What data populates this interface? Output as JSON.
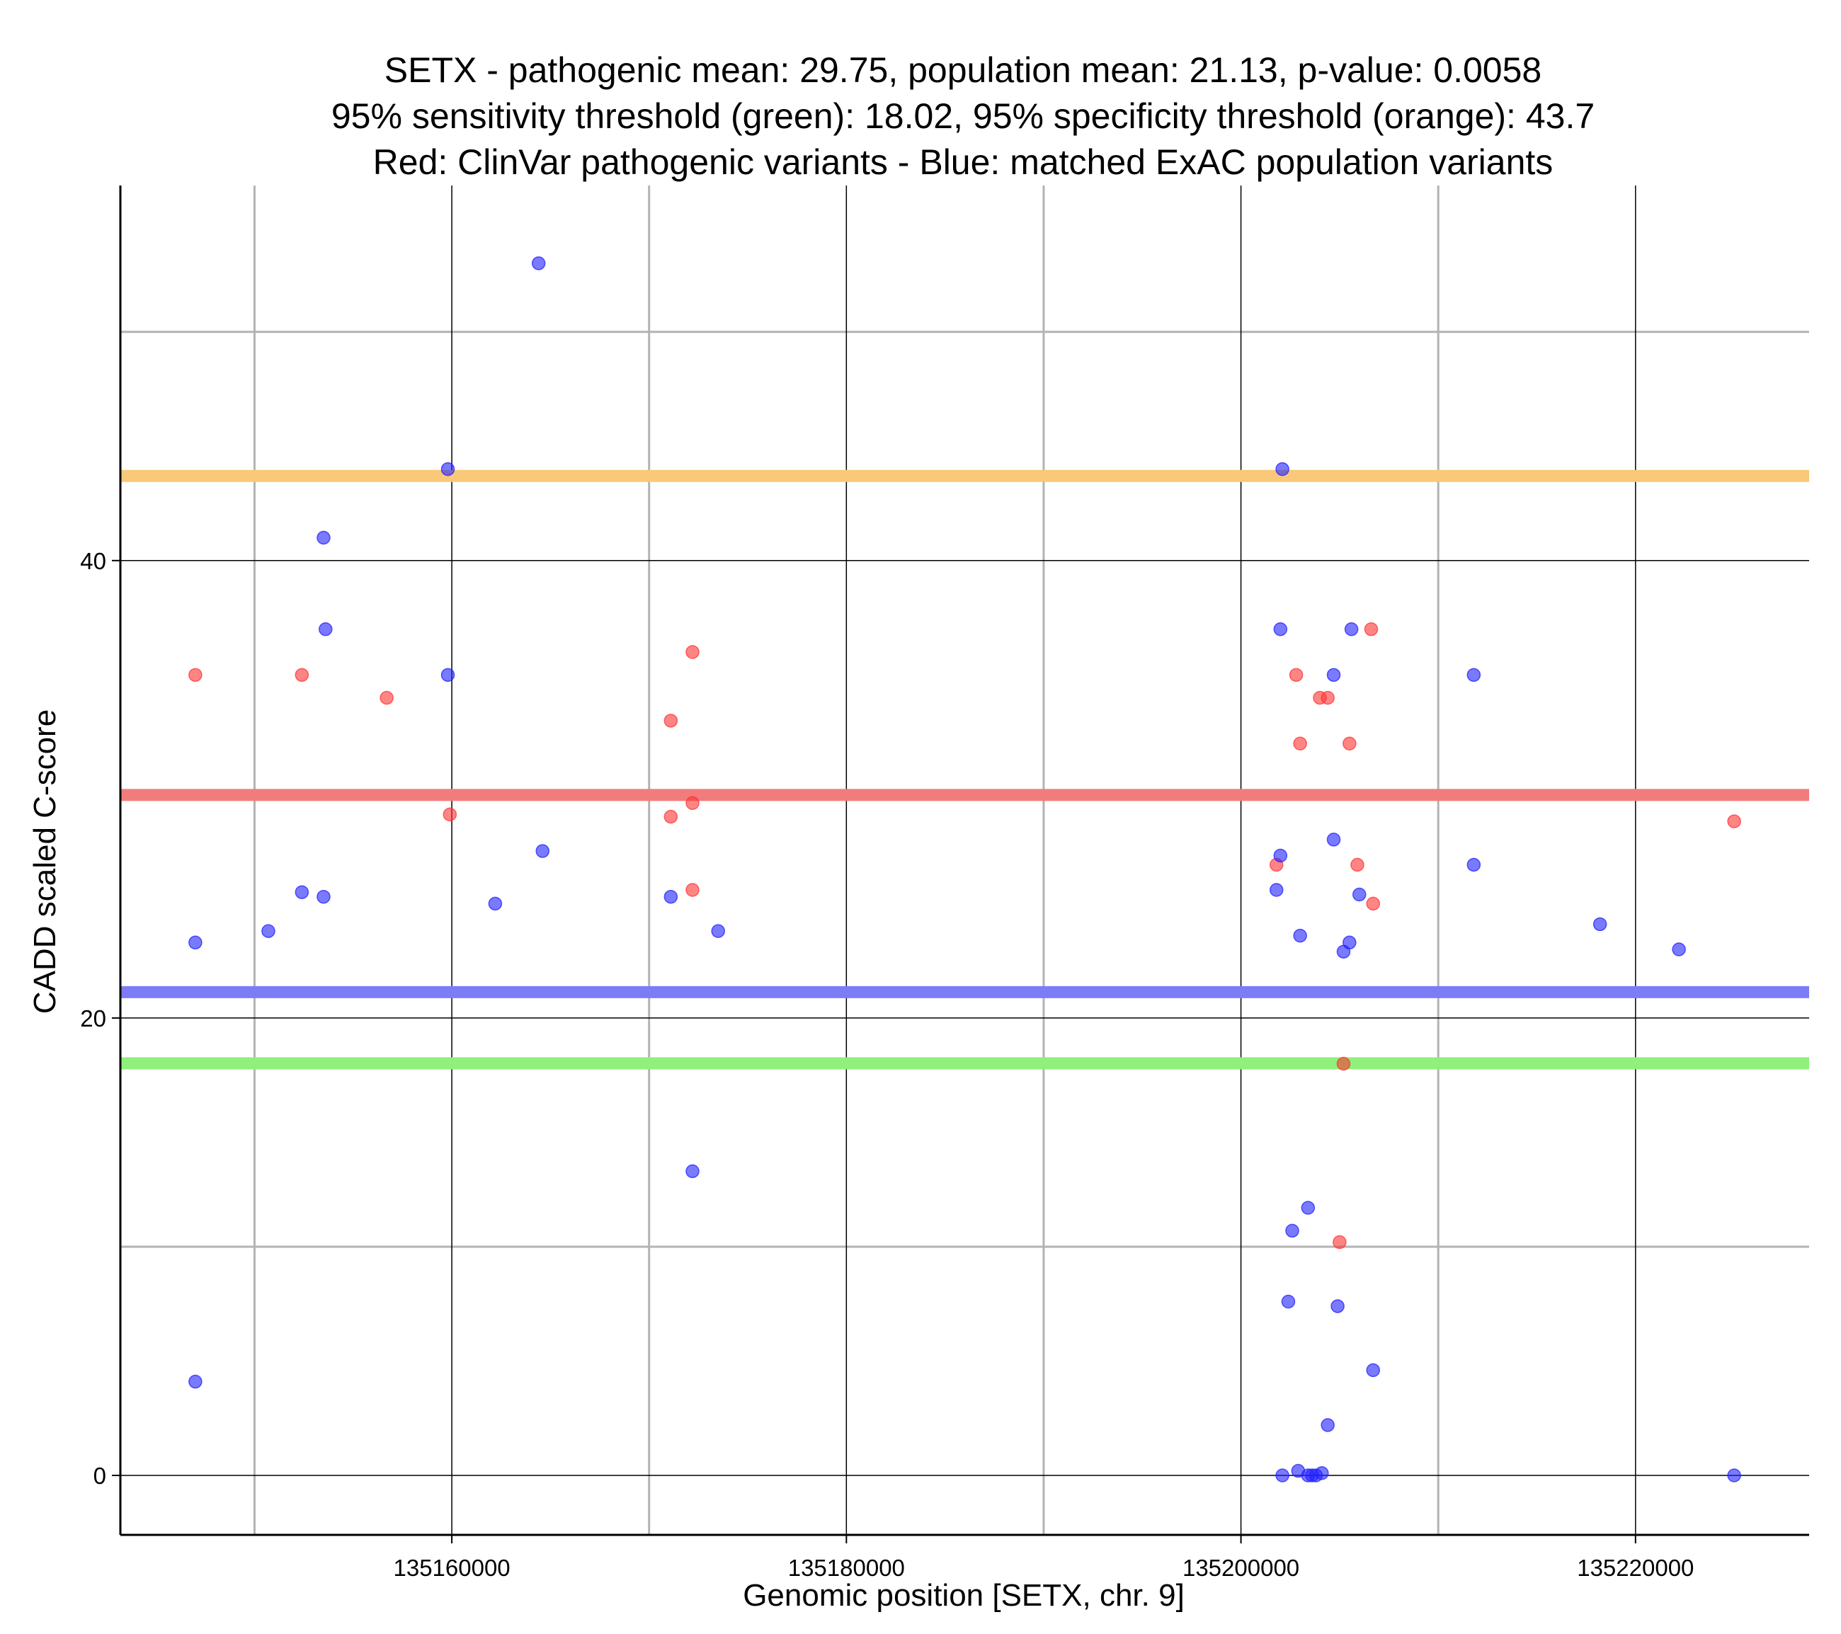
{
  "chart_data": {
    "type": "scatter",
    "title": [
      "SETX - pathogenic mean: 29.75, population mean: 21.13, p-value: 0.0058",
      "95% sensitivity threshold (green): 18.02, 95% specificity threshold (orange): 43.7",
      "Red: ClinVar pathogenic variants - Blue: matched ExAC population variants"
    ],
    "xlabel": "Genomic position [SETX, chr. 9]",
    "ylabel": "CADD scaled C-score",
    "xlim": [
      135143200,
      135228800
    ],
    "ylim": [
      -2.6,
      56.4
    ],
    "x_ticks": [
      135160000,
      135180000,
      135200000,
      135220000
    ],
    "x_tick_labels": [
      "135160000",
      "135180000",
      "135200000",
      "135220000"
    ],
    "x_minor_grid": [
      135150000,
      135170000,
      135190000,
      135210000
    ],
    "y_ticks": [
      0,
      20,
      40
    ],
    "y_tick_labels": [
      "0",
      "20",
      "40"
    ],
    "y_minor_grid": [
      10,
      50
    ],
    "thresholds": [
      {
        "name": "specificity",
        "value": 43.7,
        "color": "#f9c878"
      },
      {
        "name": "pathogenic-mean",
        "value": 29.75,
        "color": "#f27c7c"
      },
      {
        "name": "population-mean",
        "value": 21.13,
        "color": "#7c7cf7"
      },
      {
        "name": "sensitivity",
        "value": 18.02,
        "color": "#8ff07c"
      }
    ],
    "series": [
      {
        "name": "ClinVar pathogenic",
        "color": "#ff3333",
        "points": [
          [
            135147000,
            35.0
          ],
          [
            135152400,
            35.0
          ],
          [
            135156700,
            34.0
          ],
          [
            135159900,
            28.9
          ],
          [
            135171100,
            33.0
          ],
          [
            135171100,
            28.8
          ],
          [
            135172200,
            36.0
          ],
          [
            135172200,
            29.4
          ],
          [
            135172200,
            25.6
          ],
          [
            135201800,
            26.7
          ],
          [
            135202800,
            35.0
          ],
          [
            135203000,
            32.0
          ],
          [
            135204000,
            34.0
          ],
          [
            135204400,
            34.0
          ],
          [
            135205500,
            32.0
          ],
          [
            135205900,
            26.7
          ],
          [
            135206600,
            37.0
          ],
          [
            135206700,
            25.0
          ],
          [
            135205200,
            18.0
          ],
          [
            135205000,
            10.2
          ],
          [
            135225000,
            28.6
          ]
        ]
      },
      {
        "name": "ExAC population",
        "color": "#2222ff",
        "points": [
          [
            135164400,
            53.0
          ],
          [
            135159800,
            44.0
          ],
          [
            135153500,
            41.0
          ],
          [
            135153600,
            37.0
          ],
          [
            135159800,
            35.0
          ],
          [
            135164600,
            27.3
          ],
          [
            135147000,
            23.3
          ],
          [
            135150700,
            23.8
          ],
          [
            135152400,
            25.5
          ],
          [
            135153500,
            25.3
          ],
          [
            135162200,
            25.0
          ],
          [
            135171100,
            25.3
          ],
          [
            135173500,
            23.8
          ],
          [
            135172200,
            13.3
          ],
          [
            135147000,
            4.1
          ],
          [
            135202100,
            44.0
          ],
          [
            135202000,
            37.0
          ],
          [
            135202000,
            27.1
          ],
          [
            135201800,
            25.6
          ],
          [
            135204700,
            35.0
          ],
          [
            135205600,
            37.0
          ],
          [
            135204700,
            27.8
          ],
          [
            135206000,
            25.4
          ],
          [
            135203000,
            23.6
          ],
          [
            135205500,
            23.3
          ],
          [
            135205200,
            22.9
          ],
          [
            135211800,
            35.0
          ],
          [
            135211800,
            26.7
          ],
          [
            135218200,
            24.1
          ],
          [
            135222200,
            23.0
          ],
          [
            135203400,
            11.7
          ],
          [
            135202600,
            10.7
          ],
          [
            135202400,
            7.6
          ],
          [
            135204900,
            7.4
          ],
          [
            135206700,
            4.6
          ],
          [
            135204400,
            2.2
          ],
          [
            135202100,
            0.0
          ],
          [
            135202900,
            0.2
          ],
          [
            135203400,
            0.0
          ],
          [
            135203600,
            0.0
          ],
          [
            135203800,
            0.0
          ],
          [
            135204100,
            0.1
          ],
          [
            135225000,
            0.0
          ]
        ]
      }
    ]
  }
}
